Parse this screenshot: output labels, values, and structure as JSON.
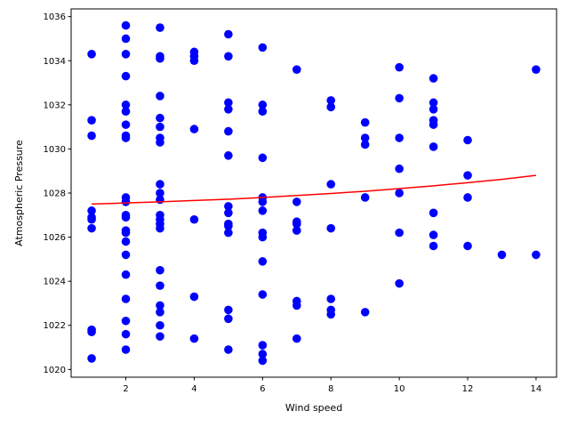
{
  "chart_data": {
    "type": "scatter",
    "xlabel": "Wind speed",
    "ylabel": "Atmospheric Pressure",
    "xlim": [
      0.4,
      14.6
    ],
    "ylim": [
      1019.65,
      1036.35
    ],
    "xticks": [
      2,
      4,
      6,
      8,
      10,
      12,
      14
    ],
    "yticks": [
      1020,
      1022,
      1024,
      1026,
      1028,
      1030,
      1032,
      1034,
      1036
    ],
    "grid": false,
    "colors": {
      "points": "#0000ff",
      "trend": "#ff0000"
    },
    "points": [
      [
        1,
        1034.3
      ],
      [
        1,
        1031.3
      ],
      [
        1,
        1030.6
      ],
      [
        1,
        1027.2
      ],
      [
        1,
        1026.9
      ],
      [
        1,
        1026.8
      ],
      [
        1,
        1026.4
      ],
      [
        1,
        1021.8
      ],
      [
        1,
        1021.7
      ],
      [
        1,
        1020.5
      ],
      [
        2,
        1035.6
      ],
      [
        2,
        1035.0
      ],
      [
        2,
        1034.3
      ],
      [
        2,
        1033.3
      ],
      [
        2,
        1032.0
      ],
      [
        2,
        1031.7
      ],
      [
        2,
        1031.1
      ],
      [
        2,
        1030.6
      ],
      [
        2,
        1030.5
      ],
      [
        2,
        1027.8
      ],
      [
        2,
        1027.6
      ],
      [
        2,
        1027.0
      ],
      [
        2,
        1026.9
      ],
      [
        2,
        1026.3
      ],
      [
        2,
        1026.2
      ],
      [
        2,
        1025.8
      ],
      [
        2,
        1025.2
      ],
      [
        2,
        1024.3
      ],
      [
        2,
        1023.2
      ],
      [
        2,
        1022.2
      ],
      [
        2,
        1021.6
      ],
      [
        2,
        1020.9
      ],
      [
        3,
        1035.5
      ],
      [
        3,
        1034.2
      ],
      [
        3,
        1034.1
      ],
      [
        3,
        1032.4
      ],
      [
        3,
        1031.4
      ],
      [
        3,
        1031.0
      ],
      [
        3,
        1030.5
      ],
      [
        3,
        1030.3
      ],
      [
        3,
        1028.4
      ],
      [
        3,
        1028.0
      ],
      [
        3,
        1027.7
      ],
      [
        3,
        1027.0
      ],
      [
        3,
        1026.8
      ],
      [
        3,
        1026.6
      ],
      [
        3,
        1026.4
      ],
      [
        3,
        1024.5
      ],
      [
        3,
        1023.8
      ],
      [
        3,
        1022.9
      ],
      [
        3,
        1022.6
      ],
      [
        3,
        1022.0
      ],
      [
        3,
        1021.5
      ],
      [
        4,
        1034.4
      ],
      [
        4,
        1034.2
      ],
      [
        4,
        1034.0
      ],
      [
        4,
        1030.9
      ],
      [
        4,
        1026.8
      ],
      [
        4,
        1023.3
      ],
      [
        4,
        1021.4
      ],
      [
        5,
        1035.2
      ],
      [
        5,
        1034.2
      ],
      [
        5,
        1032.1
      ],
      [
        5,
        1031.8
      ],
      [
        5,
        1030.8
      ],
      [
        5,
        1029.7
      ],
      [
        5,
        1027.4
      ],
      [
        5,
        1027.1
      ],
      [
        5,
        1026.6
      ],
      [
        5,
        1026.5
      ],
      [
        5,
        1026.2
      ],
      [
        5,
        1022.7
      ],
      [
        5,
        1022.3
      ],
      [
        5,
        1020.9
      ],
      [
        6,
        1034.6
      ],
      [
        6,
        1032.0
      ],
      [
        6,
        1031.7
      ],
      [
        6,
        1029.6
      ],
      [
        6,
        1027.8
      ],
      [
        6,
        1027.6
      ],
      [
        6,
        1027.2
      ],
      [
        6,
        1026.2
      ],
      [
        6,
        1026.0
      ],
      [
        6,
        1024.9
      ],
      [
        6,
        1023.4
      ],
      [
        6,
        1021.1
      ],
      [
        6,
        1020.7
      ],
      [
        6,
        1020.4
      ],
      [
        7,
        1033.6
      ],
      [
        7,
        1027.6
      ],
      [
        7,
        1026.7
      ],
      [
        7,
        1026.6
      ],
      [
        7,
        1026.3
      ],
      [
        7,
        1023.1
      ],
      [
        7,
        1022.9
      ],
      [
        7,
        1021.4
      ],
      [
        8,
        1032.2
      ],
      [
        8,
        1031.9
      ],
      [
        8,
        1028.4
      ],
      [
        8,
        1026.4
      ],
      [
        8,
        1023.2
      ],
      [
        8,
        1022.7
      ],
      [
        8,
        1022.5
      ],
      [
        9,
        1031.2
      ],
      [
        9,
        1030.5
      ],
      [
        9,
        1030.2
      ],
      [
        9,
        1027.8
      ],
      [
        9,
        1022.6
      ],
      [
        10,
        1033.7
      ],
      [
        10,
        1032.3
      ],
      [
        10,
        1030.5
      ],
      [
        10,
        1029.1
      ],
      [
        10,
        1028.0
      ],
      [
        10,
        1026.2
      ],
      [
        10,
        1023.9
      ],
      [
        11,
        1033.2
      ],
      [
        11,
        1032.1
      ],
      [
        11,
        1031.8
      ],
      [
        11,
        1031.3
      ],
      [
        11,
        1031.1
      ],
      [
        11,
        1030.1
      ],
      [
        11,
        1027.1
      ],
      [
        11,
        1026.1
      ],
      [
        11,
        1025.6
      ],
      [
        12,
        1030.4
      ],
      [
        12,
        1028.8
      ],
      [
        12,
        1027.8
      ],
      [
        12,
        1025.6
      ],
      [
        13,
        1025.2
      ],
      [
        14,
        1033.6
      ],
      [
        14,
        1025.2
      ]
    ],
    "trend_line": {
      "x": [
        1,
        2,
        3,
        4,
        5,
        6,
        7,
        8,
        9,
        10,
        11,
        12,
        13,
        14
      ],
      "y": [
        1027.5,
        1027.55,
        1027.6,
        1027.66,
        1027.72,
        1027.8,
        1027.89,
        1027.98,
        1028.08,
        1028.2,
        1028.33,
        1028.47,
        1028.62,
        1028.8
      ]
    }
  }
}
